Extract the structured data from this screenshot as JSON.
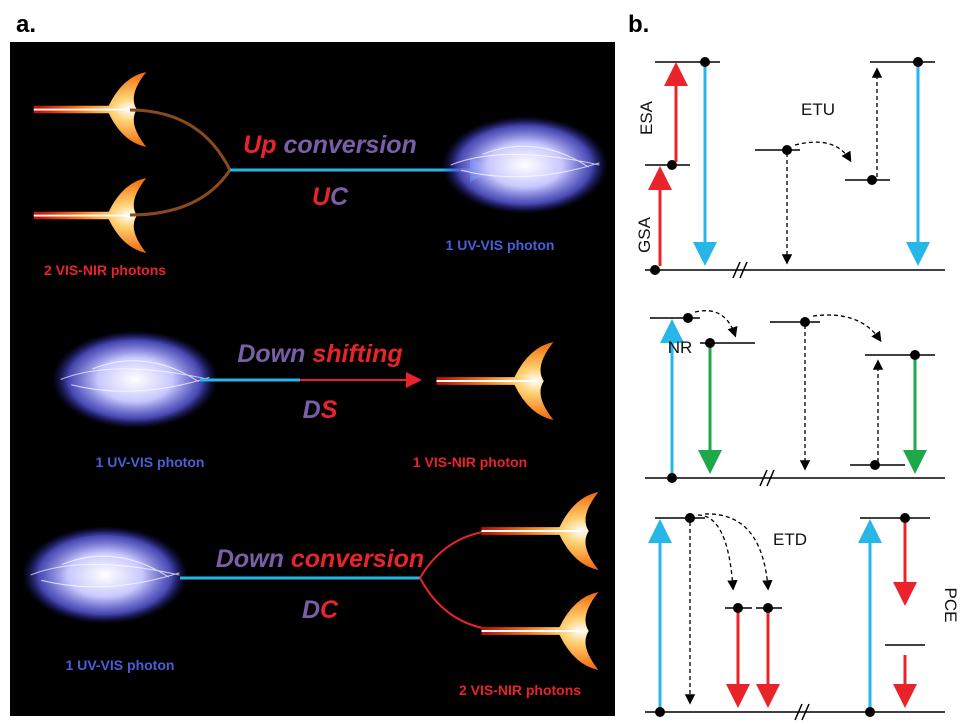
{
  "panel_a": {
    "label": "a.",
    "processes": [
      {
        "title_parts": [
          "Up",
          "conversion"
        ],
        "abbreviation_parts": [
          "U",
          "C"
        ],
        "input_label": "2 VIS-NIR photons",
        "output_label": "1 UV-VIS photon"
      },
      {
        "title_parts": [
          "Down",
          "shifting"
        ],
        "abbreviation_parts": [
          "D",
          "S"
        ],
        "input_label": "1 UV-VIS photon",
        "output_label": "1 VIS-NIR photon"
      },
      {
        "title_parts": [
          "Down",
          "conversion"
        ],
        "abbreviation_parts": [
          "D",
          "C"
        ],
        "input_label": "1 UV-VIS photon",
        "output_label": "2 VIS-NIR photons"
      }
    ]
  },
  "panel_b": {
    "label": "b.",
    "labels": {
      "esa": "ESA",
      "gsa": "GSA",
      "etu": "ETU",
      "nr": "NR",
      "etd": "ETD",
      "pce": "PCE"
    }
  }
}
